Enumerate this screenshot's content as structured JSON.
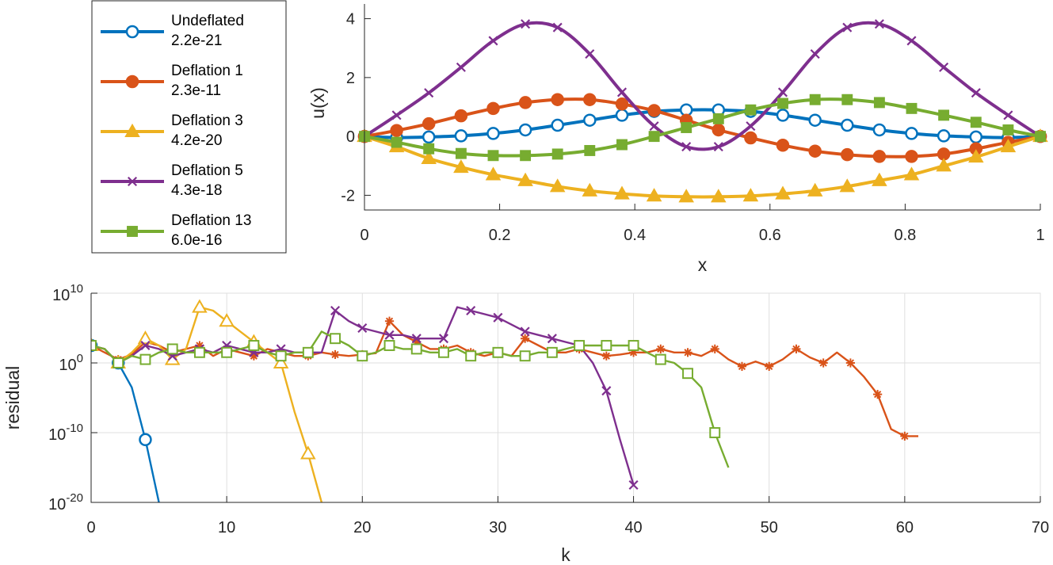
{
  "chart_data": [
    {
      "type": "line",
      "title": "",
      "xlabel": "x",
      "ylabel": "u(x)",
      "xlim": [
        0,
        1
      ],
      "ylim": [
        -2.5,
        4.5
      ],
      "xticks": [
        0,
        0.2,
        0.4,
        0.6,
        0.8,
        1
      ],
      "xtick_labels": [
        "0",
        "0.2",
        "0.4",
        "0.6",
        "0.8",
        "1"
      ],
      "yticks": [
        -2,
        0,
        2,
        4
      ],
      "ytick_labels": [
        "-2",
        "0",
        "2",
        "4"
      ],
      "grid": false,
      "legend_position": "outside-top-left",
      "series": [
        {
          "name": "Undeflated",
          "residual": "2.2e-21",
          "color": "#0072BD",
          "marker": "circle-open",
          "x": [
            0,
            0.0476,
            0.0952,
            0.1429,
            0.1905,
            0.2381,
            0.2857,
            0.3333,
            0.381,
            0.4286,
            0.4762,
            0.5238,
            0.5714,
            0.619,
            0.6667,
            0.7143,
            0.7619,
            0.8095,
            0.8571,
            0.9048,
            0.9524,
            1
          ],
          "y": [
            0,
            -0.04,
            -0.02,
            0.02,
            0.1,
            0.22,
            0.38,
            0.55,
            0.72,
            0.85,
            0.9,
            0.9,
            0.85,
            0.72,
            0.55,
            0.38,
            0.22,
            0.1,
            0.02,
            -0.02,
            -0.04,
            0
          ]
        },
        {
          "name": "Deflation 1",
          "residual": "2.3e-11",
          "color": "#D95319",
          "marker": "circle-filled",
          "x": [
            0,
            0.0476,
            0.0952,
            0.1429,
            0.1905,
            0.2381,
            0.2857,
            0.3333,
            0.381,
            0.4286,
            0.4762,
            0.5238,
            0.5714,
            0.619,
            0.6667,
            0.7143,
            0.7619,
            0.8095,
            0.8571,
            0.9048,
            0.9524,
            1
          ],
          "y": [
            0,
            0.2,
            0.43,
            0.7,
            0.95,
            1.15,
            1.25,
            1.25,
            1.1,
            0.88,
            0.55,
            0.22,
            -0.05,
            -0.3,
            -0.5,
            -0.62,
            -0.68,
            -0.68,
            -0.6,
            -0.42,
            -0.2,
            0
          ]
        },
        {
          "name": "Deflation 3",
          "residual": "4.2e-20",
          "color": "#EDB120",
          "marker": "triangle-filled",
          "x": [
            0,
            0.0476,
            0.0952,
            0.1429,
            0.1905,
            0.2381,
            0.2857,
            0.3333,
            0.381,
            0.4286,
            0.4762,
            0.5238,
            0.5714,
            0.619,
            0.6667,
            0.7143,
            0.7619,
            0.8095,
            0.8571,
            0.9048,
            0.9524,
            1
          ],
          "y": [
            0,
            -0.35,
            -0.75,
            -1.05,
            -1.3,
            -1.5,
            -1.7,
            -1.85,
            -1.95,
            -2.02,
            -2.05,
            -2.05,
            -2.02,
            -1.95,
            -1.85,
            -1.7,
            -1.5,
            -1.3,
            -1.0,
            -0.7,
            -0.35,
            0
          ]
        },
        {
          "name": "Deflation 5",
          "residual": "4.3e-18",
          "color": "#7E2F8E",
          "marker": "x",
          "x": [
            0,
            0.0476,
            0.0952,
            0.1429,
            0.1905,
            0.2381,
            0.2857,
            0.3333,
            0.381,
            0.4286,
            0.4762,
            0.5238,
            0.5714,
            0.619,
            0.6667,
            0.7143,
            0.7619,
            0.8095,
            0.8571,
            0.9048,
            0.9524,
            1
          ],
          "y": [
            0,
            0.72,
            1.48,
            2.35,
            3.25,
            3.82,
            3.7,
            2.8,
            1.5,
            0.35,
            -0.35,
            -0.35,
            0.35,
            1.5,
            2.8,
            3.7,
            3.82,
            3.25,
            2.35,
            1.48,
            0.72,
            0
          ]
        },
        {
          "name": "Deflation 13",
          "residual": "6.0e-16",
          "color": "#77AC30",
          "marker": "square-filled",
          "x": [
            0,
            0.0476,
            0.0952,
            0.1429,
            0.1905,
            0.2381,
            0.2857,
            0.3333,
            0.381,
            0.4286,
            0.4762,
            0.5238,
            0.5714,
            0.619,
            0.6667,
            0.7143,
            0.7619,
            0.8095,
            0.8571,
            0.9048,
            0.9524,
            1
          ],
          "y": [
            0,
            -0.2,
            -0.42,
            -0.58,
            -0.65,
            -0.65,
            -0.6,
            -0.48,
            -0.28,
            0.0,
            0.3,
            0.6,
            0.9,
            1.12,
            1.25,
            1.25,
            1.15,
            0.95,
            0.72,
            0.48,
            0.22,
            0
          ]
        }
      ]
    },
    {
      "type": "line",
      "title": "",
      "xlabel": "k",
      "ylabel": "residual",
      "yscale": "log",
      "xlim": [
        0,
        70
      ],
      "ylim_exp": [
        -20,
        10
      ],
      "xticks": [
        0,
        10,
        20,
        30,
        40,
        50,
        60,
        70
      ],
      "xtick_labels": [
        "0",
        "10",
        "20",
        "30",
        "40",
        "50",
        "60",
        "70"
      ],
      "yticks_exp": [
        10,
        0,
        -10,
        -20
      ],
      "ytick_base": "10",
      "ytick_exponents": [
        "10",
        "0",
        "-10",
        "-20"
      ],
      "grid": true,
      "series": [
        {
          "name": "Undeflated",
          "color": "#0072BD",
          "marker": "circle-open",
          "marker_every": 2,
          "k": [
            0,
            1,
            2,
            3,
            4,
            5
          ],
          "log10_residual": [
            2.5,
            2.0,
            0.0,
            -3.5,
            -11.0,
            -20.0
          ]
        },
        {
          "name": "Deflation 1",
          "color": "#D95319",
          "marker": "asterisk",
          "marker_every": 2,
          "k": [
            0,
            1,
            2,
            3,
            4,
            5,
            6,
            7,
            8,
            9,
            10,
            11,
            12,
            13,
            14,
            15,
            16,
            17,
            18,
            19,
            20,
            21,
            22,
            23,
            24,
            25,
            26,
            27,
            28,
            29,
            30,
            31,
            32,
            33,
            34,
            35,
            36,
            37,
            38,
            39,
            40,
            41,
            42,
            43,
            44,
            45,
            46,
            47,
            48,
            49,
            50,
            51,
            52,
            53,
            54,
            55,
            56,
            57,
            58,
            59,
            60,
            61
          ],
          "log10_residual": [
            2.5,
            1.5,
            0.5,
            1.2,
            3.0,
            2.5,
            1.5,
            2.0,
            2.5,
            1.0,
            2.0,
            1.5,
            1.0,
            2.0,
            1.5,
            1.0,
            1.0,
            1.5,
            1.2,
            1.0,
            1.2,
            1.4,
            6.0,
            4.0,
            3.0,
            2.0,
            2.0,
            2.5,
            1.5,
            1.0,
            1.5,
            1.0,
            3.5,
            2.5,
            1.5,
            1.5,
            2.0,
            1.5,
            1.0,
            1.2,
            1.5,
            1.5,
            2.0,
            1.5,
            1.5,
            1.0,
            2.0,
            0.5,
            -0.5,
            0.2,
            -0.5,
            0.5,
            2.0,
            0.8,
            0.0,
            1.5,
            0.0,
            -2.0,
            -4.5,
            -9.5,
            -10.5,
            -10.5
          ]
        },
        {
          "name": "Deflation 3",
          "color": "#EDB120",
          "marker": "triangle-open",
          "marker_every": 2,
          "k": [
            0,
            1,
            2,
            3,
            4,
            5,
            6,
            7,
            8,
            9,
            10,
            11,
            12,
            13,
            14,
            15,
            16,
            17
          ],
          "log10_residual": [
            2.5,
            2.0,
            0.0,
            1.5,
            3.5,
            2.5,
            0.5,
            2.0,
            8.0,
            7.5,
            6.0,
            4.5,
            3.0,
            1.5,
            0.0,
            -7.0,
            -13.0,
            -20.0
          ]
        },
        {
          "name": "Deflation 5",
          "color": "#7E2F8E",
          "marker": "x",
          "marker_every": 2,
          "k": [
            0,
            1,
            2,
            3,
            4,
            5,
            6,
            7,
            8,
            9,
            10,
            11,
            12,
            13,
            14,
            15,
            16,
            17,
            18,
            19,
            20,
            21,
            22,
            23,
            24,
            25,
            26,
            27,
            28,
            29,
            30,
            31,
            32,
            33,
            34,
            35,
            36,
            37,
            38,
            39,
            40
          ],
          "log10_residual": [
            2.5,
            2.0,
            0.0,
            1.0,
            2.5,
            2.0,
            1.0,
            1.5,
            2.0,
            1.5,
            2.5,
            2.0,
            1.5,
            1.5,
            2.0,
            1.5,
            1.5,
            1.5,
            7.5,
            6.0,
            5.0,
            4.5,
            4.0,
            4.0,
            3.5,
            3.5,
            3.5,
            8.0,
            7.5,
            7.0,
            6.5,
            5.5,
            4.5,
            4.0,
            3.5,
            3.0,
            2.5,
            0.0,
            -4.0,
            -11.0,
            -17.5
          ]
        },
        {
          "name": "Deflation 13",
          "color": "#77AC30",
          "marker": "square-open",
          "marker_every": 2,
          "k": [
            0,
            1,
            2,
            3,
            4,
            5,
            6,
            7,
            8,
            9,
            10,
            11,
            12,
            13,
            14,
            15,
            16,
            17,
            18,
            19,
            20,
            21,
            22,
            23,
            24,
            25,
            26,
            27,
            28,
            29,
            30,
            31,
            32,
            33,
            34,
            35,
            36,
            37,
            38,
            39,
            40,
            41,
            42,
            43,
            44,
            45,
            46,
            47
          ],
          "log10_residual": [
            2.5,
            2.0,
            0.0,
            1.0,
            0.5,
            1.5,
            2.0,
            1.5,
            1.5,
            1.5,
            1.5,
            2.0,
            2.5,
            1.5,
            1.0,
            1.5,
            1.5,
            4.5,
            3.5,
            2.5,
            1.0,
            1.5,
            2.5,
            2.0,
            2.0,
            1.5,
            1.5,
            2.0,
            1.0,
            1.5,
            1.5,
            1.0,
            1.0,
            1.5,
            1.5,
            2.0,
            2.5,
            2.5,
            2.5,
            2.5,
            2.5,
            1.5,
            0.5,
            0.0,
            -1.5,
            -3.5,
            -10.0,
            -15.0
          ]
        }
      ]
    }
  ]
}
